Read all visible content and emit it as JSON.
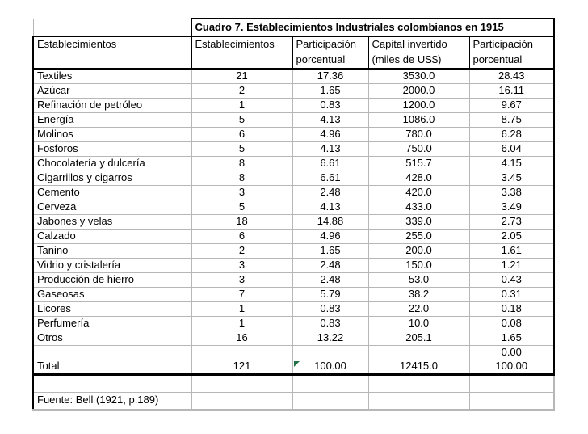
{
  "table": {
    "title": "Cuadro 7. Establecimientos Industriales colombianos en 1915",
    "header_top": [
      "Establecimientos",
      "Establecimientos",
      "Participación",
      "Capital invertido",
      "Participación"
    ],
    "header_bottom": [
      "",
      "",
      "porcentual",
      "(miles de US$)",
      "porcentual"
    ],
    "body_rows": [
      {
        "cells": [
          "Textiles",
          "21",
          "17.36",
          "3530.0",
          "28.43"
        ]
      },
      {
        "cells": [
          "Azúcar",
          "2",
          "1.65",
          "2000.0",
          "16.11"
        ]
      },
      {
        "cells": [
          "Refinación de petróleo",
          "1",
          "0.83",
          "1200.0",
          "9.67"
        ]
      },
      {
        "cells": [
          "Energía",
          "5",
          "4.13",
          "1086.0",
          "8.75"
        ]
      },
      {
        "cells": [
          "Molinos",
          "6",
          "4.96",
          "780.0",
          "6.28"
        ]
      },
      {
        "cells": [
          "Fosforos",
          "5",
          "4.13",
          "750.0",
          "6.04"
        ]
      },
      {
        "cells": [
          "Chocolatería y dulcería",
          "8",
          "6.61",
          "515.7",
          "4.15"
        ]
      },
      {
        "cells": [
          "Cigarrillos y cigarros",
          "8",
          "6.61",
          "428.0",
          "3.45"
        ]
      },
      {
        "cells": [
          "Cemento",
          "3",
          "2.48",
          "420.0",
          "3.38"
        ]
      },
      {
        "cells": [
          "Cerveza",
          "5",
          "4.13",
          "433.0",
          "3.49"
        ]
      },
      {
        "cells": [
          "Jabones y velas",
          "18",
          "14.88",
          "339.0",
          "2.73"
        ]
      },
      {
        "cells": [
          "Calzado",
          "6",
          "4.96",
          "255.0",
          "2.05"
        ]
      },
      {
        "cells": [
          "Tanino",
          "2",
          "1.65",
          "200.0",
          "1.61"
        ]
      },
      {
        "cells": [
          "Vidrio y cristalería",
          "3",
          "2.48",
          "150.0",
          "1.21"
        ]
      },
      {
        "cells": [
          "Producción de hierro",
          "3",
          "2.48",
          "53.0",
          "0.43"
        ]
      },
      {
        "cells": [
          "Gaseosas",
          "7",
          "5.79",
          "38.2",
          "0.31"
        ]
      },
      {
        "cells": [
          "Licores",
          "1",
          "0.83",
          "22.0",
          "0.18"
        ]
      },
      {
        "cells": [
          "Perfumería",
          "1",
          "0.83",
          "10.0",
          "0.08"
        ]
      },
      {
        "cells": [
          "Otros",
          "16",
          "13.22",
          "205.1",
          "1.65"
        ]
      },
      {
        "cells": [
          "",
          "",
          "",
          "",
          "0.00"
        ]
      },
      {
        "cells": [
          "Total",
          "121",
          "100.00",
          "12415.0",
          "100.00"
        ],
        "total": true,
        "flag_col": 2
      }
    ],
    "footer_rows": [
      {
        "cells": [
          "",
          "",
          "",
          "",
          ""
        ]
      },
      {
        "cells": [
          "Fuente: Bell (1921, p.189)",
          "",
          "",
          "",
          ""
        ]
      }
    ],
    "colors": {
      "grid": "#b7b7b7",
      "border": "#000000",
      "flag_green": "#217346",
      "background": "#ffffff"
    },
    "icons": {
      "error_flag": "excel-error-flag-icon"
    }
  }
}
